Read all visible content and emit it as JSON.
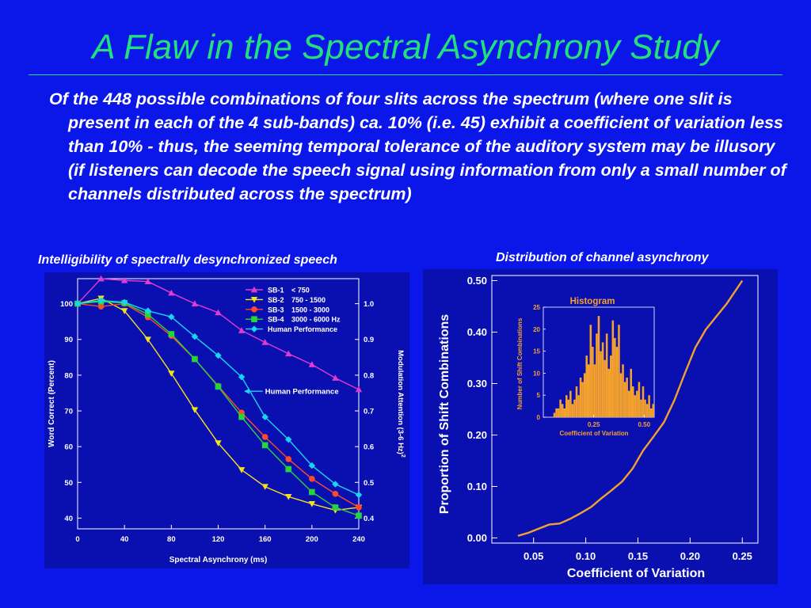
{
  "slide": {
    "title": "A Flaw in the Spectral Asynchrony Study",
    "body": "Of the 448 possible combinations of four slits across the spectrum (where one slit is present in each of the 4 sub-bands) ca. 10% (i.e. 45) exhibit a coefficient of variation less than 10% - thus, the seeming temporal tolerance of the auditory system may be illusory (if listeners can decode the speech signal using information from only a small number of channels distributed across the spectrum)",
    "left_caption": "Intelligibility of spectrally desynchronized speech",
    "right_caption": "Distribution of channel asynchrony"
  },
  "colors": {
    "background": "#0b16e8",
    "title": "#22e07a",
    "panel": "#0a10b0",
    "sb1": "#e23ad1",
    "sb2": "#f2e21e",
    "sb3": "#ff4a2a",
    "sb4": "#25d63a",
    "human": "#19d5f2",
    "histogram": "#f5a12e"
  },
  "chart_data": [
    {
      "type": "line",
      "xlabel": "Spectral Asynchrony (ms)",
      "ylabel": "Word Correct (Percent)",
      "y2label": "Modulation Attention (3-6 Hz)",
      "y2label_sup": "2",
      "xlim": [
        0,
        240
      ],
      "ylim": [
        37,
        107
      ],
      "y2lim": [
        0.37,
        1.07
      ],
      "x_ticks": [
        "0",
        "40",
        "80",
        "120",
        "160",
        "200",
        "240"
      ],
      "x_tick_values": [
        0,
        40,
        80,
        120,
        160,
        200,
        240
      ],
      "y_ticks": [
        "40",
        "50",
        "60",
        "70",
        "80",
        "90",
        "100"
      ],
      "y_tick_values": [
        40,
        50,
        60,
        70,
        80,
        90,
        100
      ],
      "y2_ticks": [
        "0.4",
        "0.5",
        "0.6",
        "0.7",
        "0.8",
        "0.9",
        "1.0"
      ],
      "y2_tick_values": [
        0.4,
        0.5,
        0.6,
        0.7,
        0.8,
        0.9,
        1.0
      ],
      "legend_position": "top-right",
      "annotation": "Human Performance",
      "x": [
        0,
        20,
        40,
        60,
        80,
        100,
        120,
        140,
        160,
        180,
        200,
        220,
        240
      ],
      "series": [
        {
          "name": "SB-1",
          "range": "<  750",
          "marker": "triangle-up",
          "color_key": "sb1",
          "values": [
            100,
            107,
            106.5,
            106.2,
            103,
            100,
            97.5,
            92.5,
            89.2,
            86,
            83,
            79.2,
            76
          ]
        },
        {
          "name": "SB-2",
          "range": "750 - 1500",
          "marker": "triangle-down",
          "color_key": "sb2",
          "values": [
            100,
            101.5,
            98,
            90,
            80.5,
            70.3,
            61,
            53.5,
            48.8,
            46,
            44,
            42.2,
            43
          ]
        },
        {
          "name": "SB-3",
          "range": "1500 - 3000",
          "marker": "circle",
          "color_key": "sb3",
          "values": [
            100,
            99.2,
            100,
            96.2,
            91,
            84.5,
            77,
            69.5,
            62.7,
            56.5,
            51,
            46.8,
            43
          ]
        },
        {
          "name": "SB-4",
          "range": "3000 - 6000 Hz",
          "marker": "square",
          "color_key": "sb4",
          "values": [
            100,
            100.6,
            100.2,
            97,
            91.5,
            84.5,
            76.8,
            68.3,
            60.4,
            53.7,
            47.3,
            43,
            40.7
          ]
        },
        {
          "name": "Human Performance",
          "range": "",
          "marker": "diamond",
          "color_key": "human",
          "values": [
            100,
            100.9,
            100.4,
            98,
            96.3,
            90.8,
            85.5,
            79.5,
            68.3,
            62,
            54.7,
            49.5,
            46.5
          ]
        }
      ]
    },
    {
      "type": "line",
      "xlabel": "Coefficient of Variation",
      "ylabel": "Proportion of Shift Combinations",
      "xlim": [
        0.01,
        0.265
      ],
      "ylim": [
        -0.01,
        0.51
      ],
      "x_ticks": [
        "0.05",
        "0.10",
        "0.15",
        "0.20",
        "0.25"
      ],
      "x_tick_values": [
        0.05,
        0.1,
        0.15,
        0.2,
        0.25
      ],
      "y_ticks": [
        "0.00",
        "0.10",
        "0.20",
        "0.30",
        "0.40",
        "0.50"
      ],
      "y_tick_values": [
        0.0,
        0.1,
        0.2,
        0.3,
        0.4,
        0.5
      ],
      "x": [
        0.035,
        0.045,
        0.055,
        0.065,
        0.075,
        0.085,
        0.095,
        0.105,
        0.115,
        0.125,
        0.135,
        0.145,
        0.155,
        0.165,
        0.175,
        0.185,
        0.195,
        0.205,
        0.215,
        0.225,
        0.235,
        0.25
      ],
      "series": [
        {
          "name": "",
          "color_key": "histogram",
          "values": [
            0.004,
            0.01,
            0.018,
            0.026,
            0.028,
            0.037,
            0.048,
            0.06,
            0.077,
            0.093,
            0.11,
            0.135,
            0.17,
            0.197,
            0.225,
            0.268,
            0.32,
            0.37,
            0.405,
            0.43,
            0.455,
            0.5
          ]
        }
      ],
      "inset": {
        "type": "bar",
        "title": "Histogram",
        "xlabel": "Coefficient of Variation",
        "ylabel": "Number of Shift Combinations",
        "xlim": [
          0,
          0.55
        ],
        "ylim": [
          0,
          25
        ],
        "x_ticks": [
          "0.25",
          "0.50"
        ],
        "x_tick_values": [
          0.25,
          0.5
        ],
        "y_ticks": [
          "0",
          "5",
          "10",
          "15",
          "20",
          "25"
        ],
        "y_tick_values": [
          0,
          5,
          10,
          15,
          20,
          25
        ],
        "bin_width": 0.01,
        "bin_start": 0.05,
        "values": [
          1,
          2,
          2,
          4,
          3,
          2,
          5,
          4,
          6,
          3,
          4,
          7,
          5,
          9,
          8,
          10,
          14,
          12,
          21,
          16,
          12,
          19,
          23,
          15,
          17,
          13,
          19,
          11,
          14,
          22,
          18,
          16,
          21,
          10,
          12,
          8,
          9,
          6,
          11,
          7,
          5,
          6,
          8,
          4,
          7,
          4,
          3,
          5,
          2,
          3
        ]
      }
    }
  ]
}
